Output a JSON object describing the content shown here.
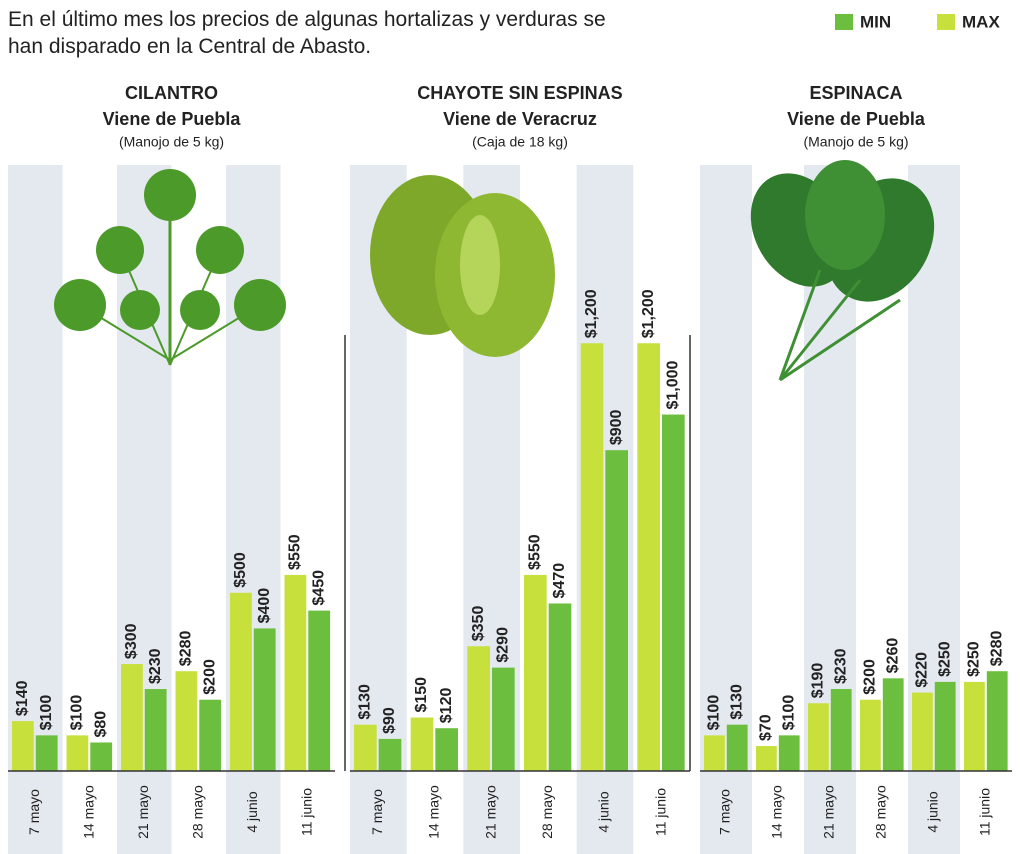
{
  "subtitle": "En el último mes los precios de algunas hortalizas y verduras se han disparado en la Central de Abasto.",
  "chart_data": [
    {
      "type": "bar",
      "title": "CILANTRO",
      "subtitle": "Viene de Puebla",
      "note": "(Manojo de 5 kg)",
      "categories": [
        "7 mayo",
        "14 mayo",
        "21 mayo",
        "28 mayo",
        "4 junio",
        "11 junio"
      ],
      "ylim": [
        0,
        1700
      ],
      "series": [
        {
          "name": "MIN",
          "color": "#6cbf3e",
          "values": [
            100,
            80,
            230,
            200,
            400,
            450
          ],
          "value_labels": [
            "$100",
            "$80",
            "$230",
            "$200",
            "$400",
            "$450"
          ]
        },
        {
          "name": "MAX",
          "color": "#c8e03c",
          "values": [
            140,
            100,
            300,
            280,
            500,
            550
          ],
          "value_labels": [
            "$140",
            "$100",
            "$300",
            "$280",
            "$500",
            "$550"
          ]
        }
      ]
    },
    {
      "type": "bar",
      "title": "CHAYOTE SIN ESPINAS",
      "subtitle": "Viene de Veracruz",
      "note": "(Caja de 18 kg)",
      "categories": [
        "7 mayo",
        "14 mayo",
        "21 mayo",
        "28 mayo",
        "4 junio",
        "11 junio"
      ],
      "ylim": [
        0,
        1700
      ],
      "series": [
        {
          "name": "MIN",
          "color": "#6cbf3e",
          "values": [
            90,
            120,
            290,
            470,
            900,
            1000
          ],
          "value_labels": [
            "$90",
            "$120",
            "$290",
            "$470",
            "$900",
            "$1,000"
          ]
        },
        {
          "name": "MAX",
          "color": "#c8e03c",
          "values": [
            130,
            150,
            350,
            550,
            1200,
            1200
          ],
          "value_labels": [
            "$130",
            "$150",
            "$350",
            "$550",
            "$1,200",
            "$1,200"
          ]
        }
      ]
    },
    {
      "type": "bar",
      "title": "ESPINACA",
      "subtitle": "Viene de Puebla",
      "note": "(Manojo de 5 kg)",
      "categories": [
        "7 mayo",
        "14 mayo",
        "21 mayo",
        "28 mayo",
        "4 junio",
        "11 junio"
      ],
      "ylim": [
        0,
        1700
      ],
      "series": [
        {
          "name": "MIN",
          "color": "#6cbf3e",
          "values": [
            130,
            100,
            230,
            260,
            250,
            280
          ],
          "value_labels": [
            "$130",
            "$100",
            "$230",
            "$260",
            "$250",
            "$280"
          ]
        },
        {
          "name": "MAX",
          "color": "#c8e03c",
          "values": [
            100,
            70,
            190,
            200,
            220,
            250
          ],
          "value_labels": [
            "$100",
            "$70",
            "$190",
            "$200",
            "$220",
            "$250"
          ]
        }
      ]
    }
  ]
}
